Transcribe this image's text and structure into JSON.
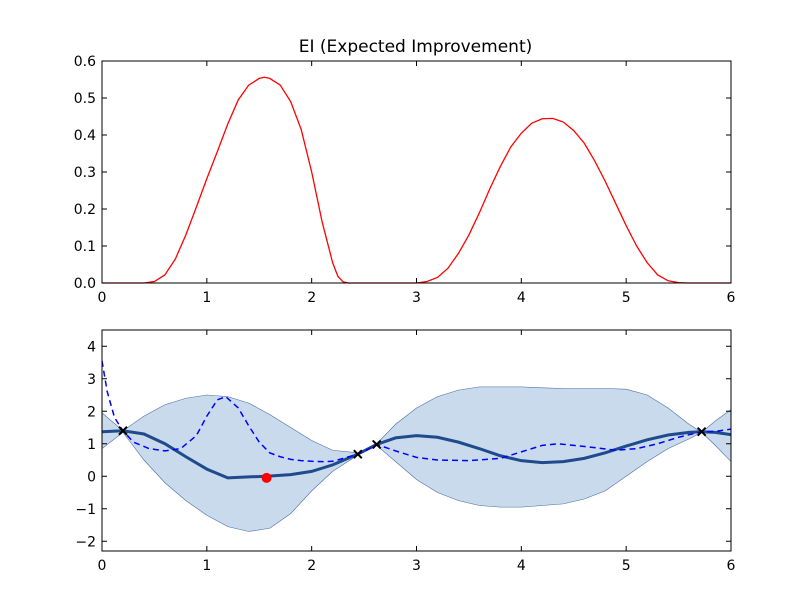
{
  "chart_data": [
    {
      "type": "line",
      "title": "EI (Expected Improvement)",
      "xlabel": "",
      "ylabel": "",
      "xlim": [
        0,
        6
      ],
      "ylim": [
        0,
        0.6
      ],
      "xticks": [
        "0",
        "1",
        "2",
        "3",
        "4",
        "5",
        "6"
      ],
      "yticks": [
        "0.0",
        "0.1",
        "0.2",
        "0.3",
        "0.4",
        "0.5",
        "0.6"
      ],
      "grid": false,
      "series": [
        {
          "color": "#ff0000",
          "x": [
            0,
            0.4,
            0.5,
            0.6,
            0.7,
            0.8,
            0.9,
            1.0,
            1.1,
            1.2,
            1.3,
            1.4,
            1.5,
            1.55,
            1.6,
            1.7,
            1.8,
            1.9,
            2.0,
            2.1,
            2.2,
            2.25,
            2.3,
            2.35,
            2.4,
            3.0,
            3.1,
            3.2,
            3.3,
            3.4,
            3.5,
            3.6,
            3.7,
            3.8,
            3.9,
            4.0,
            4.1,
            4.2,
            4.3,
            4.4,
            4.5,
            4.6,
            4.7,
            4.8,
            4.9,
            5.0,
            5.1,
            5.2,
            5.3,
            5.4,
            5.5,
            5.6,
            6.0
          ],
          "y": [
            0,
            0,
            0.004,
            0.022,
            0.065,
            0.13,
            0.205,
            0.282,
            0.355,
            0.43,
            0.495,
            0.535,
            0.553,
            0.556,
            0.553,
            0.535,
            0.49,
            0.415,
            0.3,
            0.165,
            0.055,
            0.018,
            0.003,
            0,
            0,
            0,
            0.004,
            0.015,
            0.04,
            0.08,
            0.13,
            0.19,
            0.255,
            0.315,
            0.368,
            0.405,
            0.432,
            0.444,
            0.445,
            0.435,
            0.412,
            0.378,
            0.33,
            0.275,
            0.215,
            0.155,
            0.1,
            0.055,
            0.022,
            0.006,
            0.001,
            0,
            0
          ]
        }
      ]
    },
    {
      "type": "line",
      "title": "",
      "xlabel": "",
      "ylabel": "",
      "xlim": [
        0,
        6
      ],
      "ylim": [
        -2.3,
        4.5
      ],
      "xticks": [
        "0",
        "1",
        "2",
        "3",
        "4",
        "5",
        "6"
      ],
      "yticks": [
        "−2",
        "−1",
        "0",
        "1",
        "2",
        "3",
        "4"
      ],
      "yticks_values": [
        -2,
        -1,
        0,
        1,
        2,
        3,
        4
      ],
      "grid": false,
      "band": {
        "color": "#c8daec",
        "edge_color": "#4a6fa5",
        "x": [
          0,
          0.2,
          0.4,
          0.6,
          0.8,
          1.0,
          1.2,
          1.4,
          1.6,
          1.8,
          2.0,
          2.2,
          2.44,
          2.62,
          2.8,
          3.0,
          3.2,
          3.4,
          3.6,
          3.8,
          4.0,
          4.2,
          4.4,
          4.6,
          4.8,
          5.0,
          5.2,
          5.4,
          5.6,
          5.72,
          5.85,
          6.0
        ],
        "upper": [
          1.95,
          1.4,
          1.85,
          2.2,
          2.4,
          2.5,
          2.45,
          2.25,
          1.9,
          1.5,
          1.1,
          0.8,
          0.72,
          1.0,
          1.6,
          2.1,
          2.45,
          2.65,
          2.75,
          2.75,
          2.75,
          2.72,
          2.7,
          2.7,
          2.7,
          2.68,
          2.5,
          2.1,
          1.6,
          1.35,
          1.7,
          2.05
        ],
        "lower": [
          0.85,
          1.35,
          0.5,
          -0.2,
          -0.75,
          -1.2,
          -1.55,
          -1.7,
          -1.6,
          -1.15,
          -0.45,
          0.15,
          0.65,
          0.95,
          0.45,
          -0.1,
          -0.5,
          -0.75,
          -0.9,
          -0.95,
          -0.95,
          -0.9,
          -0.85,
          -0.7,
          -0.45,
          0.0,
          0.45,
          0.85,
          1.15,
          1.35,
          0.95,
          0.45
        ]
      },
      "series": [
        {
          "color": "#1f4a8c",
          "style": "solid",
          "x": [
            0,
            0.2,
            0.4,
            0.6,
            0.8,
            1.0,
            1.2,
            1.4,
            1.57,
            1.8,
            2.0,
            2.2,
            2.44,
            2.62,
            2.8,
            3.0,
            3.2,
            3.4,
            3.6,
            3.8,
            4.0,
            4.2,
            4.4,
            4.6,
            4.8,
            5.0,
            5.2,
            5.4,
            5.6,
            5.72,
            5.85,
            6.0
          ],
          "y": [
            1.37,
            1.4,
            1.3,
            1.0,
            0.6,
            0.22,
            -0.05,
            -0.02,
            0.0,
            0.05,
            0.15,
            0.35,
            0.68,
            0.98,
            1.18,
            1.25,
            1.2,
            1.05,
            0.85,
            0.63,
            0.48,
            0.42,
            0.45,
            0.55,
            0.72,
            0.93,
            1.12,
            1.27,
            1.35,
            1.37,
            1.35,
            1.28
          ]
        },
        {
          "color": "#0000ff",
          "style": "dashed",
          "x": [
            0,
            0.05,
            0.12,
            0.2,
            0.3,
            0.45,
            0.6,
            0.75,
            0.9,
            1.0,
            1.1,
            1.18,
            1.3,
            1.4,
            1.5,
            1.6,
            1.7,
            1.8,
            1.9,
            2.0,
            2.1,
            2.2,
            2.3,
            2.44,
            2.55,
            2.62,
            2.8,
            3.0,
            3.2,
            3.5,
            3.8,
            4.0,
            4.2,
            4.35,
            4.5,
            4.7,
            4.9,
            5.1,
            5.3,
            5.5,
            5.72,
            5.85,
            6.0
          ],
          "y": [
            3.55,
            2.6,
            1.8,
            1.4,
            1.05,
            0.85,
            0.78,
            0.85,
            1.25,
            1.85,
            2.35,
            2.45,
            2.1,
            1.55,
            1.05,
            0.72,
            0.6,
            0.52,
            0.48,
            0.46,
            0.45,
            0.46,
            0.55,
            0.68,
            0.85,
            0.98,
            0.78,
            0.58,
            0.5,
            0.48,
            0.55,
            0.75,
            0.95,
            1.0,
            0.95,
            0.88,
            0.8,
            0.85,
            1.0,
            1.2,
            1.37,
            1.38,
            1.45
          ]
        }
      ],
      "observations": {
        "color": "#000000",
        "marker": "x",
        "x": [
          0.2,
          2.44,
          2.62,
          5.72
        ],
        "y": [
          1.4,
          0.68,
          0.98,
          1.37
        ]
      },
      "next_point": {
        "color": "#ff0000",
        "marker": "o",
        "x": 1.57,
        "y": -0.05
      }
    }
  ]
}
